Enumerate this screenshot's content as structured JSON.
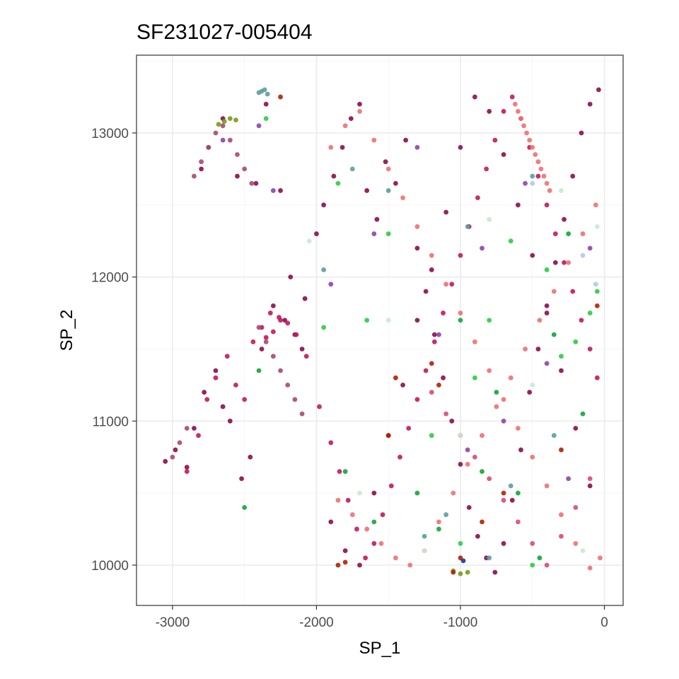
{
  "chart_data": {
    "type": "scatter",
    "title": "SF231027-005404",
    "xlabel": "SP_1",
    "ylabel": "SP_2",
    "xlim": [
      -3250,
      130
    ],
    "ylim": [
      9720,
      13540
    ],
    "x_ticks": [
      -3000,
      -2000,
      -1000,
      0
    ],
    "x_tick_labels": [
      "-3000",
      "-2000",
      "-1000",
      "0"
    ],
    "y_ticks": [
      10000,
      11000,
      12000,
      13000
    ],
    "y_tick_labels": [
      "10000",
      "11000",
      "12000",
      "13000"
    ],
    "grid": true,
    "legend": "none",
    "palette": [
      "#8b0d4b",
      "#c2185b",
      "#f07070",
      "#a8496e",
      "#d94b72",
      "#8e44ad",
      "#2ecc40",
      "#12a53a",
      "#5b9e9c",
      "#7a9a12",
      "#b32000",
      "#c8ead0",
      "#b0c8f0",
      "#1a3a8a"
    ],
    "series": [
      {
        "name": "",
        "x": [
          -3050,
          -2980,
          -2900,
          -2850,
          -2780,
          -2700,
          -2650,
          -2600,
          -2520,
          -2460,
          -2380,
          -2300,
          -2220,
          -2150,
          -2080,
          -2000,
          -1950,
          -1880,
          -1820,
          -1760,
          -1700,
          -1650,
          -1580,
          -1520,
          -1450,
          -1380,
          -1300,
          -1240,
          -1180,
          -1120,
          -1060,
          -1000,
          -940,
          -880,
          -820,
          -760,
          -700,
          -640,
          -580,
          -520,
          -460,
          -400,
          -340,
          -280,
          -220,
          -160,
          -100,
          -40,
          -2800,
          -2750,
          -2650,
          -2550,
          -2420,
          -2350,
          -2250,
          -2180,
          -2100,
          -1900,
          -1800,
          -1700,
          -1600,
          -1500,
          -1400,
          -1300,
          -1200,
          -1100,
          -1000,
          -900,
          -800,
          -700,
          -600,
          -500,
          -400,
          -300,
          -200,
          -100
        ],
        "y": [
          10720,
          10800,
          10680,
          10950,
          11200,
          11350,
          11100,
          11000,
          10600,
          10750,
          11500,
          11800,
          11700,
          11600,
          11850,
          12300,
          12500,
          12700,
          12900,
          13100,
          13200,
          12600,
          12400,
          12800,
          12650,
          12950,
          12200,
          11900,
          11600,
          11300,
          11000,
          10700,
          10400,
          10200,
          10050,
          9950,
          10150,
          10450,
          10800,
          11200,
          11500,
          11800,
          12100,
          12400,
          12700,
          13000,
          13200,
          13300,
          12750,
          12900,
          13100,
          12700,
          12650,
          13200,
          12600,
          12000,
          11500,
          10300,
          10100,
          10000,
          10500,
          10900,
          11250,
          11700,
          12050,
          12450,
          12900,
          13250,
          13150,
          12850,
          12500,
          12150,
          11750,
          11350,
          10950,
          10550
        ],
        "color_index": 0
      },
      {
        "name": "",
        "x": [
          -2900,
          -2820,
          -2760,
          -2700,
          -2620,
          -2560,
          -2500,
          -2440,
          -2380,
          -2320,
          -2260,
          -2200,
          -2140,
          -2070,
          -1980,
          -1900,
          -1840,
          -1780,
          -1720,
          -1660,
          -1600,
          -1540,
          -1480,
          -1420,
          -1360,
          -1300,
          -1240,
          -1180,
          -1120,
          -1060,
          -1000,
          -940,
          -880,
          -820,
          -760,
          -700,
          -640,
          -580,
          -520,
          -460,
          -400,
          -340,
          -280,
          -220,
          -160,
          -100,
          -50,
          -2350,
          -2300,
          -2250
        ],
        "y": [
          10650,
          10900,
          11150,
          11300,
          11450,
          11250,
          11150,
          11550,
          11650,
          11750,
          11720,
          11680,
          11600,
          11450,
          11100,
          10850,
          10650,
          10450,
          10250,
          10050,
          10150,
          10350,
          10550,
          10750,
          10950,
          11150,
          11350,
          11550,
          11750,
          11950,
          12150,
          12350,
          12550,
          12750,
          12950,
          13150,
          13250,
          13100,
          12900,
          12700,
          12500,
          12300,
          12100,
          11900,
          11700,
          11500,
          11300,
          11580,
          11620,
          11700
        ],
        "color_index": 1
      },
      {
        "name": "",
        "x": [
          -1850,
          -1750,
          -1650,
          -1550,
          -1450,
          -1350,
          -1250,
          -1150,
          -1050,
          -950,
          -850,
          -750,
          -650,
          -550,
          -450,
          -350,
          -250,
          -150,
          -60,
          -1900,
          -1800,
          -1700,
          -1600,
          -1500,
          -1400,
          -1300,
          -1200,
          -1100,
          -1000,
          -900,
          -800,
          -700,
          -600,
          -500,
          -400,
          -300,
          -200,
          -100,
          -30,
          -620,
          -600,
          -580,
          -560,
          -540,
          -520,
          -500,
          -480,
          -460,
          -440,
          -420,
          -400,
          -380
        ],
        "y": [
          10450,
          10350,
          10250,
          10150,
          10050,
          10000,
          10100,
          10300,
          10500,
          10700,
          10900,
          11100,
          11300,
          11500,
          11700,
          11900,
          12100,
          12300,
          12500,
          12900,
          13050,
          13150,
          12950,
          12750,
          12550,
          12350,
          12150,
          11950,
          11750,
          11550,
          11350,
          11150,
          10950,
          10750,
          10550,
          10350,
          10150,
          9980,
          10050,
          13200,
          13150,
          13100,
          13050,
          13000,
          12950,
          12900,
          12850,
          12800,
          12750,
          12700,
          12650,
          12600
        ],
        "color_index": 2
      },
      {
        "name": "",
        "x": [
          -2850,
          -2800,
          -2750,
          -2700,
          -2650,
          -2600,
          -2550,
          -2500,
          -2450,
          -2400,
          -2350,
          -2300,
          -2250,
          -2200,
          -2150,
          -2100,
          -3000,
          -2950,
          -2900
        ],
        "y": [
          12700,
          12800,
          12900,
          13000,
          13050,
          12950,
          12850,
          12750,
          12650,
          11650,
          11550,
          11450,
          11350,
          11250,
          11150,
          11050,
          10750,
          10850,
          10950
        ],
        "color_index": 3
      },
      {
        "name": "",
        "x": [
          -1200,
          -1100,
          -1000,
          -900,
          -800,
          -700,
          -600,
          -500,
          -400,
          -300,
          -200,
          -100
        ],
        "y": [
          11200,
          11050,
          10900,
          10750,
          10600,
          10450,
          10300,
          10150,
          10000,
          10200,
          10400,
          10600
        ],
        "color_index": 4
      },
      {
        "name": "",
        "x": [
          -2650,
          -2400,
          -2300,
          -1900,
          -1600,
          -1300,
          -1150,
          -950,
          -850,
          -700,
          -550,
          -400,
          -250,
          -100
        ],
        "y": [
          12950,
          13050,
          12600,
          11950,
          12300,
          12900,
          11600,
          10800,
          12200,
          11000,
          12650,
          11400,
          10600,
          12200
        ],
        "color_index": 5
      },
      {
        "name": "",
        "x": [
          -2350,
          -1950,
          -1850,
          -1650,
          -1500,
          -1200,
          -1000,
          -900,
          -800,
          -650,
          -500,
          -400,
          -300,
          -200,
          -100,
          -50
        ],
        "y": [
          13100,
          11650,
          12650,
          11700,
          12300,
          10900,
          10150,
          11300,
          11700,
          12250,
          10000,
          12050,
          11450,
          11550,
          11750,
          11900
        ],
        "color_index": 6
      },
      {
        "name": "",
        "x": [
          -2500,
          -2400,
          -1800,
          -1600,
          -1300,
          -1150,
          -1000,
          -850,
          -750,
          -600,
          -450,
          -350,
          -250,
          -150
        ],
        "y": [
          10400,
          11350,
          10650,
          10300,
          10500,
          10250,
          11700,
          10650,
          11200,
          10500,
          10050,
          11600,
          12300,
          11050
        ],
        "color_index": 7
      },
      {
        "name": "",
        "x": [
          -2400,
          -2380,
          -2360,
          -2340,
          -1950,
          -1750,
          -1500,
          -1250,
          -1100,
          -950,
          -800,
          -650,
          -500,
          -350
        ],
        "y": [
          13280,
          13290,
          13300,
          13270,
          12050,
          12750,
          12600,
          10200,
          10350,
          12350,
          10050,
          10550,
          12700,
          10900
        ],
        "color_index": 8
      },
      {
        "name": "",
        "x": [
          -2680,
          -2640,
          -2600,
          -2560,
          -1050,
          -1000,
          -950
        ],
        "y": [
          13060,
          13080,
          13100,
          13090,
          9960,
          9940,
          9950
        ],
        "color_index": 9
      },
      {
        "name": "",
        "x": [
          -2250,
          -1850,
          -1800,
          -1500,
          -1450,
          -1200,
          -1150,
          -1050,
          -1000,
          -850,
          -700,
          -300,
          -50
        ],
        "y": [
          13250,
          10000,
          10020,
          10900,
          11300,
          11400,
          11250,
          9950,
          10050,
          10300,
          10500,
          10800,
          11800
        ],
        "color_index": 10
      },
      {
        "name": "",
        "x": [
          -2050,
          -1700,
          -1500,
          -1250,
          -1000,
          -800,
          -500,
          -300,
          -150,
          -50
        ],
        "y": [
          12250,
          10500,
          11700,
          10100,
          10900,
          12400,
          11250,
          12600,
          10100,
          12350
        ],
        "color_index": 11
      },
      {
        "name": "",
        "x": [
          -500,
          -150,
          -60
        ],
        "y": [
          12650,
          12150,
          11950
        ],
        "color_index": 12
      },
      {
        "name": "",
        "x": [
          -980
        ],
        "y": [
          10030
        ],
        "color_index": 13
      }
    ]
  }
}
